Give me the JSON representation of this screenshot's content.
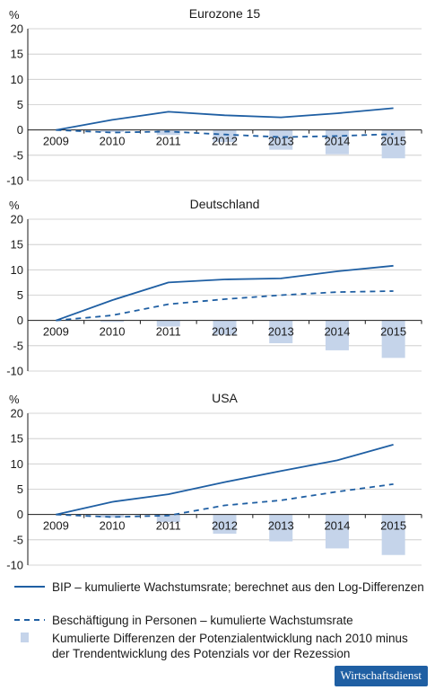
{
  "colors": {
    "bip": "#1f5fa3",
    "employment": "#1f5fa3",
    "potential": "#c5d4ea",
    "grid": "#c8c8c8",
    "axis": "#1a1a1a"
  },
  "chart_data": [
    {
      "type": "line",
      "title": "Eurozone 15",
      "ylabel": "%",
      "ylim": [
        -10,
        20
      ],
      "yticks": [
        -10,
        -5,
        0,
        5,
        10,
        15,
        20
      ],
      "categories": [
        "2009",
        "2010",
        "2011",
        "2012",
        "2013",
        "2014",
        "2015"
      ],
      "series": [
        {
          "kind": "line",
          "style": "solid",
          "values": [
            0,
            2,
            3.6,
            2.9,
            2.5,
            3.3,
            4.3
          ]
        },
        {
          "kind": "line",
          "style": "dashed",
          "values": [
            0,
            -0.5,
            -0.3,
            -0.9,
            -1.4,
            -1.2,
            -0.8
          ]
        },
        {
          "kind": "bar",
          "values": [
            null,
            -0.4,
            -1.0,
            -2.4,
            -3.9,
            -4.8,
            -5.6
          ]
        }
      ]
    },
    {
      "type": "line",
      "title": "Deutschland",
      "ylabel": "%",
      "ylim": [
        -10,
        20
      ],
      "yticks": [
        -10,
        -5,
        0,
        5,
        10,
        15,
        20
      ],
      "categories": [
        "2009",
        "2010",
        "2011",
        "2012",
        "2013",
        "2014",
        "2015"
      ],
      "series": [
        {
          "kind": "line",
          "style": "solid",
          "values": [
            0,
            4,
            7.5,
            8.1,
            8.3,
            9.7,
            10.8
          ]
        },
        {
          "kind": "line",
          "style": "dashed",
          "values": [
            0,
            1,
            3.2,
            4.2,
            5,
            5.6,
            5.8
          ]
        },
        {
          "kind": "bar",
          "values": [
            null,
            -0.3,
            -1.2,
            -2.8,
            -4.5,
            -5.9,
            -7.4
          ]
        }
      ]
    },
    {
      "type": "line",
      "title": "USA",
      "ylabel": "%",
      "ylim": [
        -10,
        20
      ],
      "yticks": [
        -10,
        -5,
        0,
        5,
        10,
        15,
        20
      ],
      "categories": [
        "2009",
        "2010",
        "2011",
        "2012",
        "2013",
        "2014",
        "2015"
      ],
      "series": [
        {
          "kind": "line",
          "style": "solid",
          "values": [
            0,
            2.5,
            4,
            6.4,
            8.6,
            10.7,
            13.8
          ]
        },
        {
          "kind": "line",
          "style": "dashed",
          "values": [
            0,
            -0.5,
            -0.2,
            1.8,
            2.8,
            4.5,
            6
          ]
        },
        {
          "kind": "bar",
          "values": [
            null,
            -0.6,
            -1.5,
            -3.8,
            -5.3,
            -6.7,
            -8
          ]
        }
      ]
    }
  ],
  "legend": {
    "items": [
      {
        "symbol": "solid-line",
        "text": "BIP – kumulierte Wachstumsrate; berechnet aus den Log-Differenzen"
      },
      {
        "symbol": "dashed-line",
        "text": "Beschäftigung in Personen – kumulierte Wachstumsrate"
      },
      {
        "symbol": "bar",
        "text": "Kumulierte Differenzen der Potenzialentwicklung nach 2010 minus der Trendentwicklung des Potenzials vor der Rezession"
      }
    ]
  },
  "badge": {
    "text": "Wirtschaftsdienst"
  }
}
